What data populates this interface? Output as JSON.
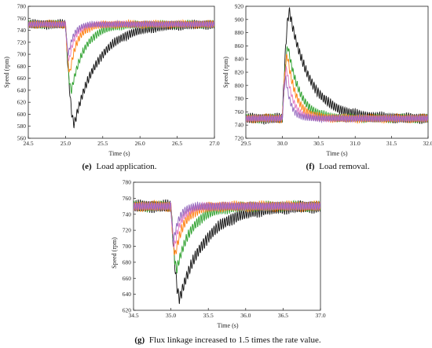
{
  "chart_data": [
    {
      "type": "line",
      "caption_tag": "(e)",
      "caption_text": "Load application.",
      "xlabel": "Time (s)",
      "ylabel": "Speed (rpm)",
      "xlim": [
        24.5,
        27.0
      ],
      "ylim": [
        560,
        780
      ],
      "xticks": [
        "24.5",
        "25.0",
        "25.5",
        "26.0",
        "26.5",
        "27.0"
      ],
      "yticks": [
        "560",
        "580",
        "600",
        "620",
        "640",
        "660",
        "680",
        "700",
        "720",
        "740",
        "760",
        "780"
      ],
      "event_time": 25.0,
      "steady": 750,
      "series": [
        {
          "color": "#111111",
          "min": 585,
          "t_min": 25.12,
          "tau": 0.32,
          "ripple": 6
        },
        {
          "color": "#2ca02c",
          "min": 640,
          "t_min": 25.08,
          "tau": 0.18,
          "ripple": 5
        },
        {
          "color": "#ff7f0e",
          "min": 670,
          "t_min": 25.06,
          "tau": 0.1,
          "ripple": 5
        },
        {
          "color": "#e377c2",
          "min": 690,
          "t_min": 25.05,
          "tau": 0.08,
          "ripple": 4
        },
        {
          "color": "#9467bd",
          "min": 700,
          "t_min": 25.04,
          "tau": 0.07,
          "ripple": 4
        }
      ]
    },
    {
      "type": "line",
      "caption_tag": "(f)",
      "caption_text": "Load removal.",
      "xlabel": "Time (s)",
      "ylabel": "Speed (rpm)",
      "xlim": [
        29.5,
        32.0
      ],
      "ylim": [
        720,
        920
      ],
      "xticks": [
        "29.5",
        "30.0",
        "30.5",
        "31.0",
        "31.5",
        "32.0"
      ],
      "yticks": [
        "720",
        "740",
        "760",
        "780",
        "800",
        "820",
        "840",
        "860",
        "880",
        "900",
        "920"
      ],
      "event_time": 30.0,
      "steady": 750,
      "series": [
        {
          "color": "#111111",
          "min": 912,
          "t_min": 30.1,
          "tau": 0.28,
          "ripple": 6
        },
        {
          "color": "#2ca02c",
          "min": 858,
          "t_min": 30.08,
          "tau": 0.16,
          "ripple": 5
        },
        {
          "color": "#ff7f0e",
          "min": 845,
          "t_min": 30.07,
          "tau": 0.12,
          "ripple": 5
        },
        {
          "color": "#e377c2",
          "min": 825,
          "t_min": 30.06,
          "tau": 0.09,
          "ripple": 4
        },
        {
          "color": "#9467bd",
          "min": 810,
          "t_min": 30.05,
          "tau": 0.07,
          "ripple": 4
        }
      ]
    },
    {
      "type": "line",
      "caption_tag": "(g)",
      "caption_text": "Flux linkage increased to 1.5 times the rate value.",
      "xlabel": "Time (s)",
      "ylabel": "Speed (rpm)",
      "xlim": [
        34.5,
        37.0
      ],
      "ylim": [
        620,
        780
      ],
      "xticks": [
        "34.5",
        "35.0",
        "35.5",
        "36.0",
        "36.5",
        "37.0"
      ],
      "yticks": [
        "620",
        "640",
        "660",
        "680",
        "700",
        "720",
        "740",
        "760",
        "780"
      ],
      "event_time": 35.0,
      "steady": 750,
      "series": [
        {
          "color": "#111111",
          "min": 636,
          "t_min": 35.12,
          "tau": 0.35,
          "ripple": 6
        },
        {
          "color": "#2ca02c",
          "min": 672,
          "t_min": 35.08,
          "tau": 0.2,
          "ripple": 5
        },
        {
          "color": "#ff7f0e",
          "min": 690,
          "t_min": 35.06,
          "tau": 0.12,
          "ripple": 5
        },
        {
          "color": "#e377c2",
          "min": 700,
          "t_min": 35.05,
          "tau": 0.09,
          "ripple": 4
        },
        {
          "color": "#9467bd",
          "min": 708,
          "t_min": 35.04,
          "tau": 0.07,
          "ripple": 4
        }
      ]
    }
  ]
}
